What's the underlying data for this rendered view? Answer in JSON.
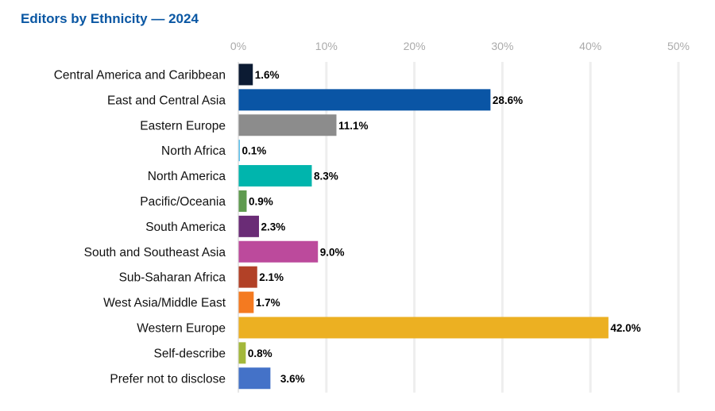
{
  "chart_data": {
    "type": "bar",
    "orientation": "horizontal",
    "title": "Editors by Ethnicity — 2024",
    "xlabel": "",
    "ylabel": "",
    "xlim": [
      0,
      50
    ],
    "x_ticks": [
      "0%",
      "10%",
      "20%",
      "30%",
      "40%",
      "50%"
    ],
    "grid": true,
    "categories": [
      "Central America and Caribbean",
      "East and Central Asia",
      "Eastern Europe",
      "North Africa",
      "North America",
      "Pacific/Oceania",
      "South America",
      "South and Southeast Asia",
      "Sub-Saharan Africa",
      "West Asia/Middle East",
      "Western Europe",
      "Self-describe",
      "Prefer not to disclose"
    ],
    "values": [
      1.6,
      28.6,
      11.1,
      0.1,
      8.3,
      0.9,
      2.3,
      9.0,
      2.1,
      1.7,
      42.0,
      0.8,
      3.6
    ],
    "data_labels": [
      "1.6%",
      "28.6%",
      "11.1%",
      "0.1%",
      "8.3%",
      "0.9%",
      "2.3%",
      "9.0%",
      "2.1%",
      "1.7%",
      "42.0%",
      "0.8%",
      "3.6%"
    ],
    "colors": [
      "#0c1b33",
      "#0a55a5",
      "#8c8c8c",
      "#5bc0eb",
      "#00b5ad",
      "#5f9b4f",
      "#6a2c76",
      "#bc4a9c",
      "#b24127",
      "#f47a20",
      "#ecb022",
      "#a3b83a",
      "#4472c8"
    ]
  }
}
